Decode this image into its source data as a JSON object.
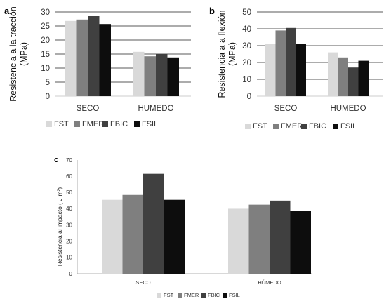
{
  "colors": {
    "FST": "#d9d9d9",
    "FMER": "#7f7f7f",
    "FBIC": "#404040",
    "FSIL": "#0d0d0d",
    "grid": "#000000",
    "text": "#333333"
  },
  "chart_data": [
    {
      "id": "a",
      "panel_letter": "a",
      "type": "bar",
      "ylabel": "Resistencia a la tracción (MPa)",
      "ylabel_lines": [
        "Resistencia a la tracción",
        "(MPa)"
      ],
      "categories": [
        "SECO",
        "HUMEDO"
      ],
      "ylim": [
        0,
        30
      ],
      "yticks": [
        0,
        5,
        10,
        15,
        20,
        25,
        30
      ],
      "grid": true,
      "legend": "bottom",
      "series": [
        {
          "name": "FST",
          "values": [
            26.8,
            15.8
          ]
        },
        {
          "name": "FMER",
          "values": [
            27.3,
            14.2
          ]
        },
        {
          "name": "FBIC",
          "values": [
            28.5,
            15.0
          ]
        },
        {
          "name": "FSIL",
          "values": [
            25.7,
            13.8
          ]
        }
      ]
    },
    {
      "id": "b",
      "panel_letter": "b",
      "type": "bar",
      "ylabel": "Resistencia a a flexión (MPa)",
      "ylabel_lines": [
        "Resistencia a a flexión",
        "(MPa)"
      ],
      "categories": [
        "SECO",
        "HUMEDO"
      ],
      "ylim": [
        0,
        50
      ],
      "yticks": [
        0,
        10,
        20,
        30,
        40,
        50
      ],
      "grid": true,
      "legend": "bottom",
      "series": [
        {
          "name": "FST",
          "values": [
            31.0,
            26.0
          ]
        },
        {
          "name": "FMER",
          "values": [
            39.0,
            23.0
          ]
        },
        {
          "name": "FBIC",
          "values": [
            40.5,
            17.0
          ]
        },
        {
          "name": "FSIL",
          "values": [
            31.0,
            21.0
          ]
        }
      ]
    },
    {
      "id": "c",
      "panel_letter": "c",
      "type": "bar",
      "ylabel": "Resistencia al impacto ( J·m²)",
      "ylabel_lines": [
        "Resistencia al impacto ( J·m²)"
      ],
      "categories": [
        "SECO",
        "HÚMEDO"
      ],
      "ylim": [
        0,
        70
      ],
      "yticks": [
        0,
        10,
        20,
        30,
        40,
        50,
        60,
        70
      ],
      "grid": false,
      "legend": "bottom",
      "series": [
        {
          "name": "FST",
          "values": [
            45.5,
            40.0
          ]
        },
        {
          "name": "FMER",
          "values": [
            48.5,
            42.5
          ]
        },
        {
          "name": "FBIC",
          "values": [
            61.5,
            45.0
          ]
        },
        {
          "name": "FSIL",
          "values": [
            45.5,
            38.5
          ]
        }
      ]
    }
  ]
}
